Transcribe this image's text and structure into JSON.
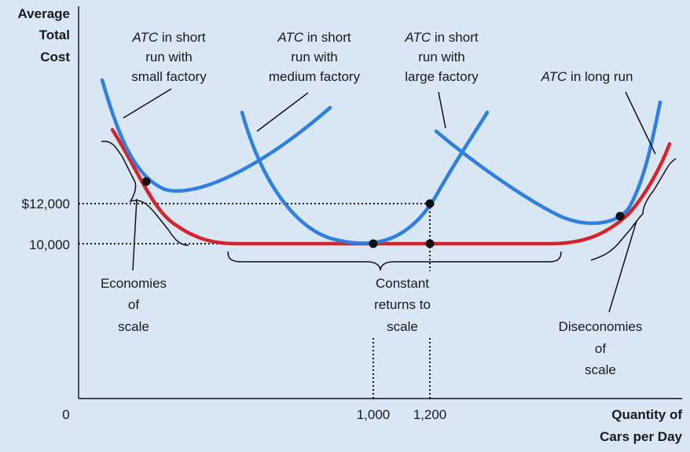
{
  "chart_data": {
    "type": "line",
    "y_axis_title": [
      "Average",
      "Total",
      "Cost"
    ],
    "x_axis_title": [
      "Quantity of",
      "Cars per Day"
    ],
    "origin_label": "0",
    "y_ticks": [
      {
        "value": 12000,
        "label": "$12,000"
      },
      {
        "value": 10000,
        "label": "10,000"
      }
    ],
    "x_ticks": [
      {
        "value": 1000,
        "label": "1,000"
      },
      {
        "value": 1200,
        "label": "1,200"
      }
    ],
    "colors": {
      "short_run": "#2f7fe0",
      "long_run": "#d5242b",
      "background": "#d9e6f3"
    },
    "curve_labels": {
      "small": [
        {
          "text": "ATC",
          "italic": true,
          "rest": " in short"
        },
        {
          "text": "run with"
        },
        {
          "text": "small factory"
        }
      ],
      "medium": [
        {
          "text": "ATC",
          "italic": true,
          "rest": " in short"
        },
        {
          "text": "run with"
        },
        {
          "text": "medium factory"
        }
      ],
      "large": [
        {
          "text": "ATC",
          "italic": true,
          "rest": " in short"
        },
        {
          "text": "run with"
        },
        {
          "text": "large factory"
        }
      ],
      "long_run": [
        {
          "text": "ATC",
          "italic": true,
          "rest": " in long run"
        }
      ]
    },
    "annotations": {
      "economies": [
        "Economies",
        "of",
        "scale"
      ],
      "constant": [
        "Constant",
        "returns to",
        "scale"
      ],
      "diseconomies": [
        "Diseconomies",
        "of",
        "scale"
      ]
    },
    "points": [
      {
        "x": 1000,
        "y": 10000
      },
      {
        "x": 1200,
        "y": 12000
      },
      {
        "x": 1200,
        "y": 10000
      }
    ]
  }
}
